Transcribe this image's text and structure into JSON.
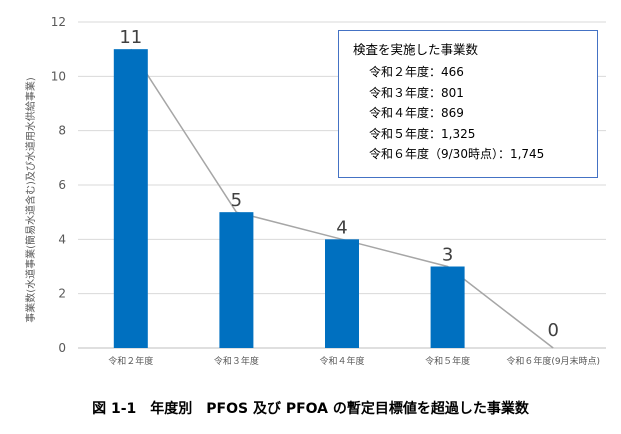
{
  "chart_data": {
    "type": "bar",
    "categories": [
      "令和２年度",
      "令和３年度",
      "令和４年度",
      "令和５年度",
      "令和６年度(9月末時点)"
    ],
    "values": [
      11,
      5,
      4,
      3,
      0
    ],
    "data_labels": [
      "11",
      "5",
      "4",
      "3",
      "0"
    ],
    "ylabel": "事業数(水道事業(簡易水道含む)及び水道用水供給事業)",
    "ylim": [
      0,
      12
    ],
    "yticks": [
      0,
      2,
      4,
      6,
      8,
      10,
      12
    ],
    "grid": true,
    "bar_color": "#0070c0",
    "trend_line_color": "#a6a6a6"
  },
  "info_box": {
    "title": "検査を実施した事業数",
    "rows": [
      "令和２年度：466",
      "令和３年度：801",
      "令和４年度：869",
      "令和５年度：1,325",
      "令和６年度（9/30時点）：1,745"
    ]
  },
  "caption": "図 1-1　年度別　PFOS 及び PFOA の暫定目標値を超過した事業数"
}
